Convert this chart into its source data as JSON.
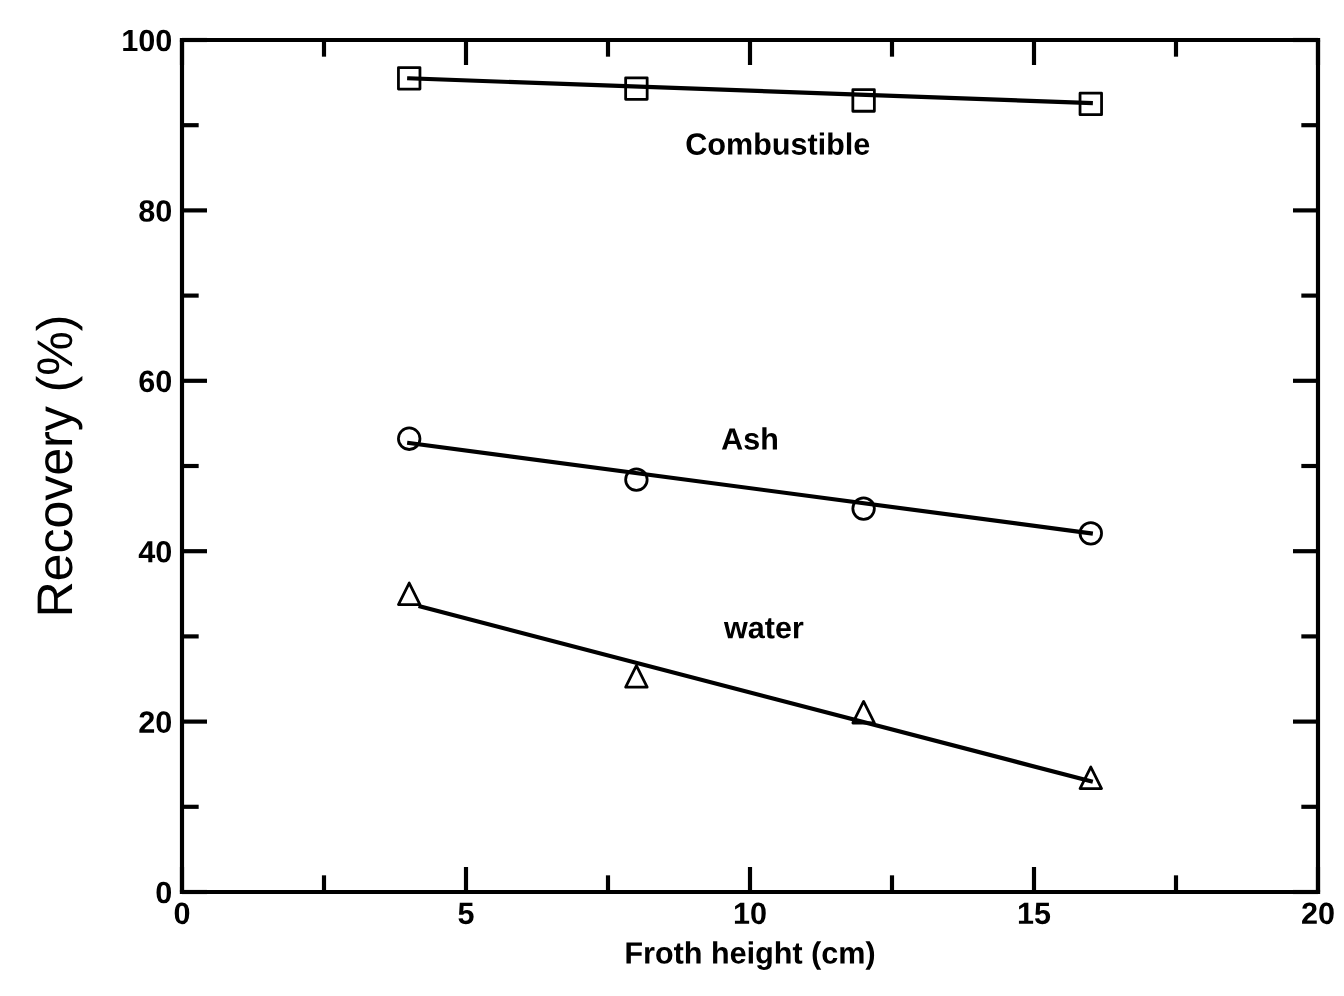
{
  "chart_data": {
    "type": "scatter",
    "xlabel": "Froth height (cm)",
    "ylabel": "Recovery (%)",
    "xlim": [
      0,
      20
    ],
    "ylim": [
      0,
      100
    ],
    "xticks": [
      0,
      5,
      10,
      15,
      20
    ],
    "yticks": [
      0,
      20,
      40,
      60,
      80,
      100
    ],
    "grid": false,
    "legend": false,
    "series": [
      {
        "name": "Combustible",
        "marker": "square",
        "color": "#000000",
        "x": [
          4,
          8,
          12,
          16
        ],
        "values": [
          95.5,
          94.3,
          92.9,
          92.5
        ]
      },
      {
        "type": "line",
        "marker": "none",
        "color": "#000000",
        "x": [
          4,
          16
        ],
        "values": [
          95.5,
          92.6
        ]
      },
      {
        "name": "Ash",
        "marker": "circle",
        "color": "#000000",
        "x": [
          4,
          8,
          12,
          16
        ],
        "values": [
          53.2,
          48.4,
          45.0,
          42.1
        ]
      },
      {
        "type": "line",
        "marker": "none",
        "color": "#000000",
        "x": [
          4,
          16
        ],
        "values": [
          52.7,
          42.1
        ]
      },
      {
        "name": "water",
        "marker": "triangle",
        "color": "#000000",
        "x": [
          4,
          8,
          12,
          16
        ],
        "values": [
          35.0,
          25.3,
          21.1,
          13.4
        ]
      },
      {
        "type": "line",
        "marker": "none",
        "color": "#000000",
        "x": [
          4.2,
          16
        ],
        "values": [
          33.5,
          13.0
        ]
      }
    ]
  }
}
